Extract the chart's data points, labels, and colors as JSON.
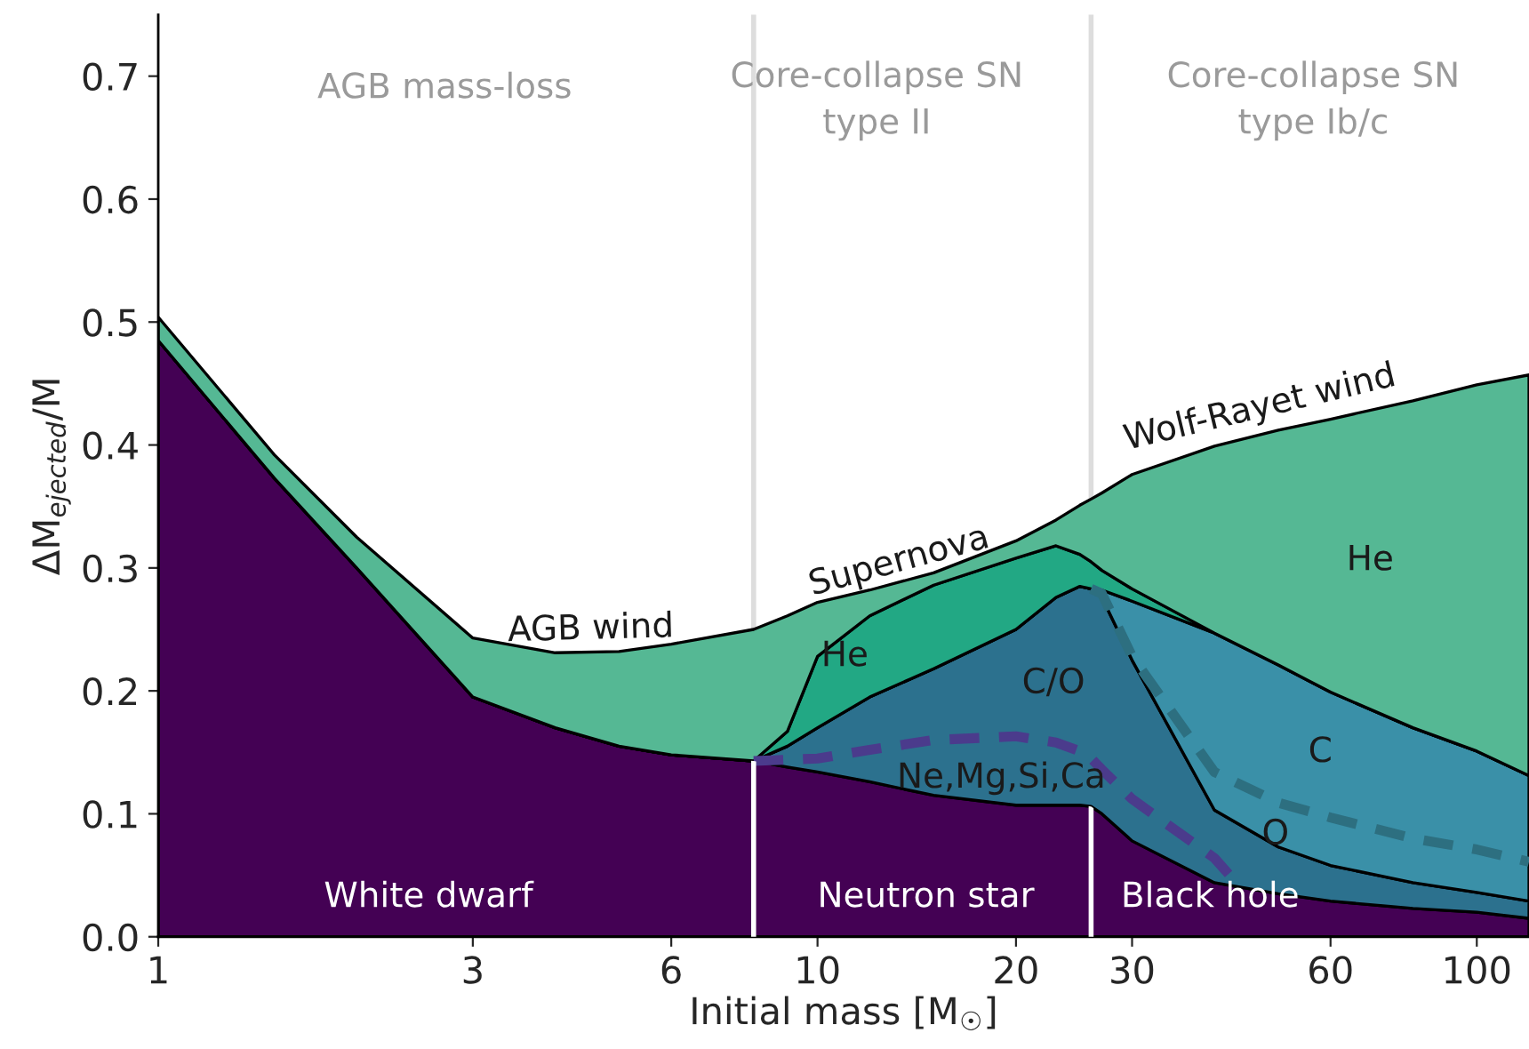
{
  "chart_data": {
    "type": "area",
    "stacked": true,
    "xlabel": "Initial mass [M$_{☉}$]",
    "ylabel": "ΔM$_{ejected}$/M",
    "log": "x",
    "x": [
      1,
      1.5,
      2,
      3,
      4,
      5,
      6,
      8,
      9,
      10,
      12,
      15,
      20,
      23,
      25,
      26,
      27,
      30,
      40,
      50,
      60,
      80,
      100,
      120
    ],
    "xlim": [
      1,
      120
    ],
    "xticks": [
      1,
      3,
      6,
      10,
      20,
      30,
      60,
      100
    ],
    "ylim": [
      0,
      0.75
    ],
    "yticks": [
      {
        "value": 0,
        "label": "0.0"
      },
      0.1,
      0.2,
      0.3,
      0.4,
      0.5,
      0.6,
      0.7
    ],
    "series": [
      {
        "color": "#440154",
        "values": [
          0.485,
          0.373,
          0.3,
          0.195,
          0.17,
          0.155,
          0.148,
          0.143,
          0.138,
          0.134,
          0.126,
          0.115,
          0.107,
          0.107,
          0.107,
          0.106,
          0.1,
          0.078,
          0.044,
          0.035,
          0.029,
          0.023,
          0.02,
          0.015
        ]
      },
      {
        "color": "#2c718e",
        "values": [
          0,
          0,
          0,
          0,
          0,
          0,
          0,
          0,
          0.017,
          0.036,
          0.069,
          0.103,
          0.143,
          0.169,
          0.178,
          0.177,
          0.176,
          0.147,
          0.059,
          0.038,
          0.029,
          0.021,
          0.016,
          0.014
        ]
      },
      {
        "color": "#3a90a8",
        "values": [
          0,
          0,
          0,
          0,
          0,
          0,
          0,
          0,
          0,
          0,
          0,
          0,
          0,
          0,
          0,
          0,
          0.006,
          0.048,
          0.144,
          0.148,
          0.141,
          0.126,
          0.115,
          0.102
        ]
      },
      {
        "color": "#22a884",
        "values": [
          0,
          0,
          0,
          0,
          0,
          0,
          0,
          0,
          0.012,
          0.058,
          0.066,
          0.068,
          0.058,
          0.042,
          0.026,
          0.022,
          0.016,
          0.01,
          0,
          0,
          0,
          0,
          0,
          0
        ]
      },
      {
        "color": "#55b894",
        "values": [
          0.019,
          0.019,
          0.025,
          0.048,
          0.061,
          0.077,
          0.09,
          0.107,
          0.094,
          0.044,
          0.021,
          0.01,
          0.014,
          0.021,
          0.04,
          0.051,
          0.063,
          0.093,
          0.152,
          0.191,
          0.222,
          0.266,
          0.298,
          0.326
        ]
      },
      {
        "type": "line",
        "line_style": "dashed",
        "color": "#4b3b8c",
        "x": [
          8,
          9,
          10,
          12,
          15,
          20,
          23,
          25,
          26,
          27,
          30,
          40,
          43
        ],
        "values": [
          0.143,
          0.144,
          0.145,
          0.152,
          0.16,
          0.163,
          0.158,
          0.151,
          0.145,
          0.136,
          0.112,
          0.064,
          0.045
        ]
      },
      {
        "type": "line",
        "line_style": "dashed",
        "color": "#2d6f80",
        "x": [
          26,
          27,
          30,
          40,
          50,
          60,
          80,
          100,
          120
        ],
        "values": [
          0.283,
          0.279,
          0.228,
          0.134,
          0.109,
          0.097,
          0.08,
          0.071,
          0.061
        ]
      }
    ],
    "ref_lines": [
      {
        "axis": "x",
        "value": 8,
        "color": "#dddddd"
      },
      {
        "axis": "x",
        "value": 26,
        "color": "#dddddd"
      },
      {
        "axis": "x",
        "value": 8,
        "color": "#ffffff"
      },
      {
        "axis": "x",
        "value": 26,
        "color": "#ffffff"
      }
    ],
    "annotations": [
      "AGB mass-loss",
      "Core-collapse SN\ntype II",
      "Core-collapse SN\ntype Ib/c",
      "AGB wind",
      "Supernova",
      "Wolf-Rayet wind",
      "He",
      "He",
      "C/O",
      "Ne,Mg,Si,Ca",
      "C",
      "O",
      "White dwarf",
      "Neutron star",
      "Black hole"
    ],
    "grid": false
  }
}
